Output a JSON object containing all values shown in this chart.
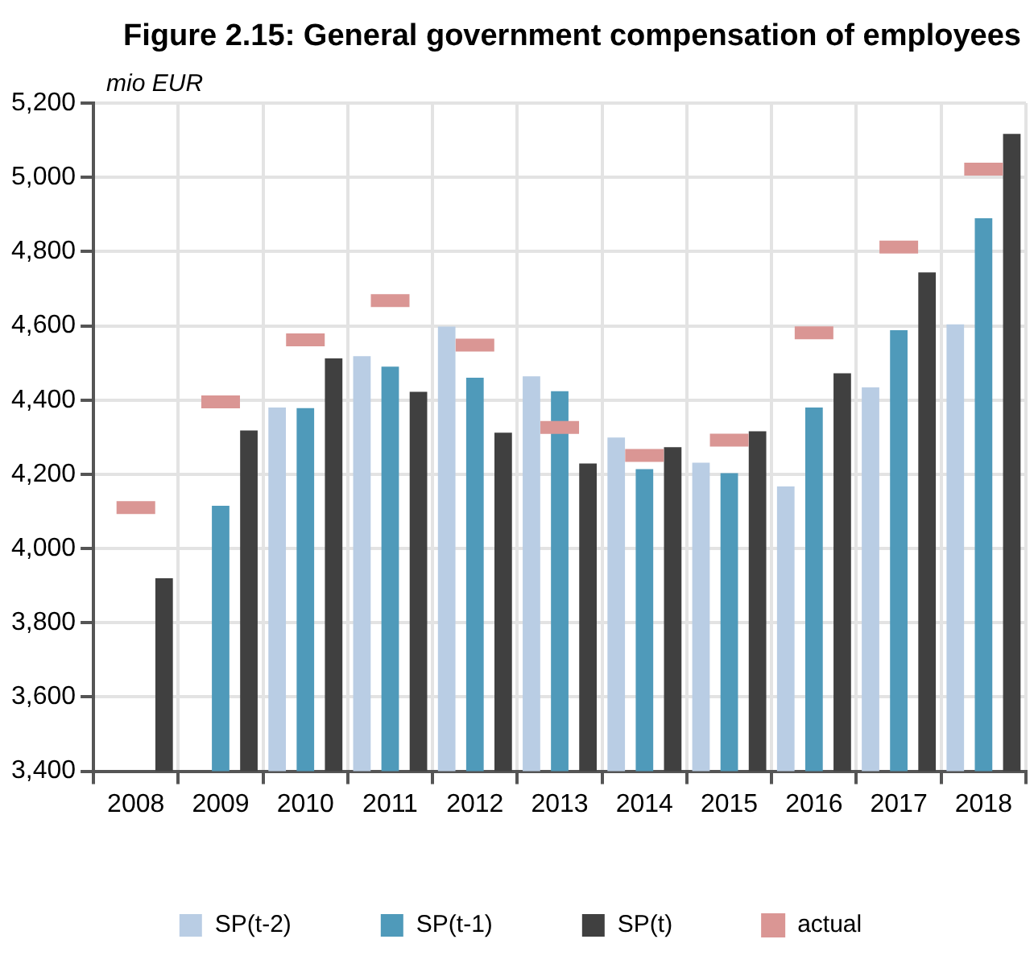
{
  "chart_data": {
    "type": "bar",
    "title": "Figure 2.15: General government compensation of employees",
    "ylabel": "mio EUR",
    "categories": [
      "2008",
      "2009",
      "2010",
      "2011",
      "2012",
      "2013",
      "2014",
      "2015",
      "2016",
      "2017",
      "2018"
    ],
    "series": [
      {
        "name": "SP(t-2)",
        "color": "#b9cde4",
        "values": [
          null,
          null,
          4380,
          4518,
          4598,
          4464,
          4299,
          4231,
          4167,
          4434,
          4604
        ]
      },
      {
        "name": "SP(t-1)",
        "color": "#4f9aba",
        "values": [
          null,
          4115,
          4378,
          4490,
          4460,
          4424,
          4214,
          4203,
          4380,
          4588,
          4890
        ]
      },
      {
        "name": "SP(t)",
        "color": "#404040",
        "values": [
          3920,
          4318,
          4512,
          4422,
          4312,
          4229,
          4273,
          4316,
          4472,
          4744,
          5117
        ]
      },
      {
        "name": "actual",
        "type": "scatter",
        "marker": "square",
        "color": "#da9694",
        "values": [
          4110,
          4395,
          4562,
          4668,
          4548,
          4326,
          4251,
          4292,
          4581,
          4812,
          5022
        ]
      }
    ],
    "ylim": [
      3400,
      5200
    ],
    "yticks": [
      {
        "value": 3400,
        "label": "3,400"
      },
      {
        "value": 3600,
        "label": "3,600"
      },
      {
        "value": 3800,
        "label": "3,800"
      },
      {
        "value": 4000,
        "label": "4,000"
      },
      {
        "value": 4200,
        "label": "4,200"
      },
      {
        "value": 4400,
        "label": "4,400"
      },
      {
        "value": 4600,
        "label": "4,600"
      },
      {
        "value": 4800,
        "label": "4,800"
      },
      {
        "value": 5000,
        "label": "5,000"
      },
      {
        "value": 5200,
        "label": "5,200"
      }
    ],
    "grid": true,
    "legend": "bottom"
  }
}
